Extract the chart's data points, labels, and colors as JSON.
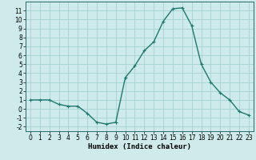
{
  "x": [
    0,
    1,
    2,
    3,
    4,
    5,
    6,
    7,
    8,
    9,
    10,
    11,
    12,
    13,
    14,
    15,
    16,
    17,
    18,
    19,
    20,
    21,
    22,
    23
  ],
  "y": [
    1,
    1,
    1,
    0.5,
    0.3,
    0.3,
    -0.5,
    -1.5,
    -1.7,
    -1.5,
    3.5,
    4.8,
    6.5,
    7.5,
    9.8,
    11.2,
    11.3,
    9.3,
    5.0,
    3.0,
    1.8,
    1.0,
    -0.3,
    -0.7
  ],
  "line_color": "#1a7a6e",
  "marker": "+",
  "marker_size": 3,
  "linewidth": 1.0,
  "xlabel": "Humidex (Indice chaleur)",
  "xlim": [
    -0.5,
    23.5
  ],
  "ylim": [
    -2.5,
    12.0
  ],
  "yticks": [
    -2,
    -1,
    0,
    1,
    2,
    3,
    4,
    5,
    6,
    7,
    8,
    9,
    10,
    11
  ],
  "xticks": [
    0,
    1,
    2,
    3,
    4,
    5,
    6,
    7,
    8,
    9,
    10,
    11,
    12,
    13,
    14,
    15,
    16,
    17,
    18,
    19,
    20,
    21,
    22,
    23
  ],
  "bg_color": "#ceeaea",
  "grid_color": "#9ecece",
  "tick_label_fontsize": 5.5,
  "xlabel_fontsize": 6.5,
  "spine_color": "#2a6a6a"
}
